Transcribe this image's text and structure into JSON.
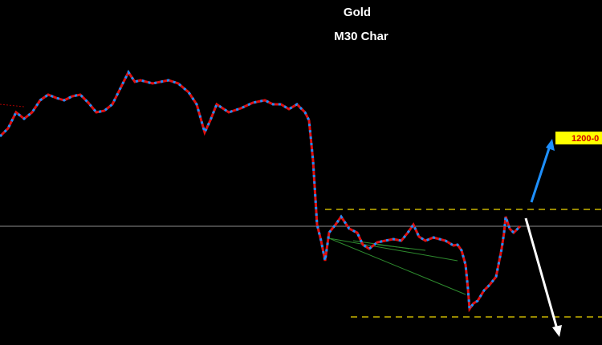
{
  "title": "Gold",
  "subtitle": "M30 Char",
  "price_label": "1200-0"
}
